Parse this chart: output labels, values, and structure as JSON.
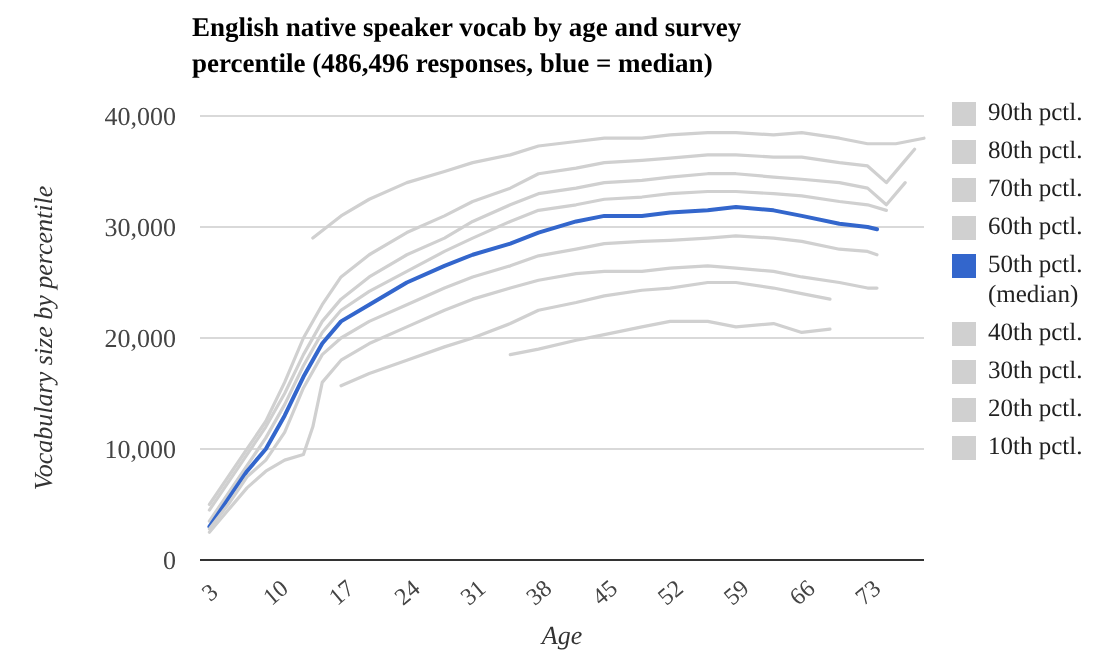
{
  "chart_data": {
    "type": "line",
    "title": "English native speaker vocab by age and survey percentile (486,496 responses, blue = median)",
    "xlabel": "Age",
    "ylabel": "Vocabulary size by percentile",
    "xlim": [
      2,
      79
    ],
    "xticks": [
      3,
      10,
      17,
      24,
      31,
      38,
      45,
      52,
      59,
      66,
      73
    ],
    "ylim": [
      0,
      40000
    ],
    "yticks": [
      0,
      {
        "value": 10000,
        "label": "10,000"
      },
      {
        "value": 20000,
        "label": "20,000"
      },
      {
        "value": 30000,
        "label": "30,000"
      },
      {
        "value": 40000,
        "label": "40,000"
      }
    ],
    "grid": "y",
    "legend": "right",
    "marker": "none",
    "line_style": "solid",
    "series": [
      {
        "name": "90th pctl.",
        "color": "#d0d0d0",
        "x": [
          14,
          17,
          20,
          24,
          28,
          31,
          35,
          38,
          42,
          45,
          49,
          52,
          56,
          59,
          63,
          66,
          70,
          73,
          76,
          79
        ],
        "values": [
          29000,
          31000,
          32500,
          34000,
          35000,
          35800,
          36500,
          37300,
          37700,
          38000,
          38000,
          38300,
          38500,
          38500,
          38300,
          38500,
          38000,
          37500,
          37500,
          38000
        ]
      },
      {
        "name": "80th pctl.",
        "color": "#d0d0d0",
        "x": [
          3,
          5,
          7,
          9,
          11,
          13,
          15,
          17,
          20,
          24,
          28,
          31,
          35,
          38,
          42,
          45,
          49,
          52,
          56,
          59,
          63,
          66,
          70,
          73,
          75,
          77,
          78
        ],
        "values": [
          5000,
          7500,
          10000,
          12500,
          16000,
          20000,
          23000,
          25500,
          27500,
          29500,
          31000,
          32300,
          33500,
          34800,
          35300,
          35800,
          36000,
          36200,
          36500,
          36500,
          36300,
          36300,
          35800,
          35500,
          34000,
          36000,
          37000
        ]
      },
      {
        "name": "70th pctl.",
        "color": "#d0d0d0",
        "x": [
          3,
          5,
          7,
          9,
          11,
          13,
          15,
          17,
          20,
          24,
          28,
          31,
          35,
          38,
          42,
          45,
          49,
          52,
          56,
          59,
          63,
          66,
          70,
          73,
          75,
          77
        ],
        "values": [
          4500,
          7000,
          9500,
          12000,
          15000,
          18500,
          21500,
          23500,
          25500,
          27500,
          29000,
          30500,
          32000,
          33000,
          33500,
          34000,
          34200,
          34500,
          34800,
          34800,
          34500,
          34300,
          34000,
          33500,
          32000,
          34000
        ]
      },
      {
        "name": "60th pctl.",
        "color": "#d0d0d0",
        "x": [
          3,
          5,
          7,
          9,
          11,
          13,
          15,
          17,
          20,
          24,
          28,
          31,
          35,
          38,
          42,
          45,
          49,
          52,
          56,
          59,
          63,
          66,
          70,
          73,
          75
        ],
        "values": [
          3500,
          6000,
          8500,
          11000,
          14000,
          17500,
          20500,
          22500,
          24200,
          26000,
          27800,
          29000,
          30500,
          31500,
          32000,
          32500,
          32700,
          33000,
          33200,
          33200,
          33000,
          32800,
          32300,
          32000,
          31500
        ]
      },
      {
        "name": "50th pctl. (median)",
        "color": "#3366cc",
        "x": [
          3,
          5,
          7,
          9,
          11,
          13,
          15,
          17,
          20,
          24,
          28,
          31,
          35,
          38,
          42,
          45,
          49,
          52,
          56,
          59,
          63,
          66,
          70,
          73,
          74
        ],
        "values": [
          3000,
          5500,
          8000,
          10000,
          13000,
          16500,
          19500,
          21500,
          23000,
          25000,
          26500,
          27500,
          28500,
          29500,
          30500,
          31000,
          31000,
          31300,
          31500,
          31800,
          31500,
          31000,
          30300,
          30000,
          29800
        ]
      },
      {
        "name": "40th pctl.",
        "color": "#d0d0d0",
        "x": [
          3,
          5,
          7,
          9,
          11,
          13,
          15,
          17,
          20,
          24,
          28,
          31,
          35,
          38,
          42,
          45,
          49,
          52,
          56,
          59,
          63,
          66,
          70,
          73,
          74
        ],
        "values": [
          2800,
          5000,
          7500,
          9000,
          11500,
          15500,
          18500,
          20000,
          21500,
          23000,
          24500,
          25500,
          26500,
          27400,
          28000,
          28500,
          28700,
          28800,
          29000,
          29200,
          29000,
          28700,
          28000,
          27800,
          27500
        ]
      },
      {
        "name": "30th pctl.",
        "color": "#d0d0d0",
        "x": [
          3,
          5,
          7,
          9,
          11,
          13,
          14,
          15,
          17,
          20,
          24,
          28,
          31,
          35,
          38,
          42,
          45,
          49,
          52,
          56,
          59,
          63,
          66,
          70,
          73,
          74
        ],
        "values": [
          2500,
          4500,
          6500,
          8000,
          9000,
          9500,
          12000,
          16000,
          18000,
          19500,
          21000,
          22500,
          23500,
          24500,
          25200,
          25800,
          26000,
          26000,
          26300,
          26500,
          26300,
          26000,
          25500,
          25000,
          24500,
          24500
        ]
      },
      {
        "name": "20th pctl.",
        "color": "#d0d0d0",
        "x": [
          17,
          20,
          24,
          28,
          31,
          35,
          38,
          42,
          45,
          49,
          52,
          56,
          59,
          63,
          66,
          69
        ],
        "values": [
          15700,
          16800,
          18000,
          19200,
          20000,
          21300,
          22500,
          23200,
          23800,
          24300,
          24500,
          25000,
          25000,
          24500,
          24000,
          23500
        ]
      },
      {
        "name": "10th pctl.",
        "color": "#d0d0d0",
        "x": [
          35,
          38,
          42,
          45,
          49,
          52,
          56,
          59,
          63,
          66,
          69
        ],
        "values": [
          18500,
          19000,
          19800,
          20300,
          21000,
          21500,
          21500,
          21000,
          21300,
          20500,
          20800
        ]
      }
    ]
  }
}
